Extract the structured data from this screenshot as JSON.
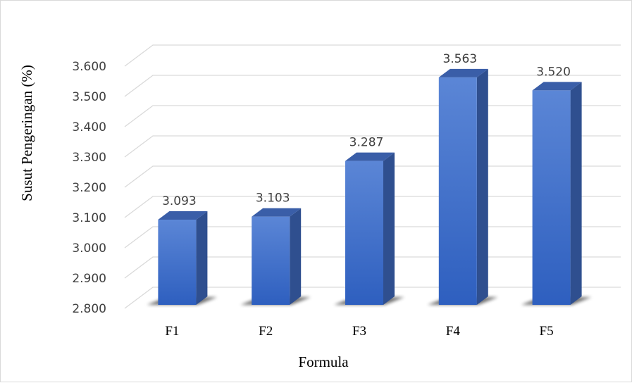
{
  "chart_data": {
    "type": "bar",
    "categories": [
      "F1",
      "F2",
      "F3",
      "F4",
      "F5"
    ],
    "values": [
      3.093,
      3.103,
      3.287,
      3.563,
      3.52
    ],
    "data_labels": [
      "3.093",
      "3.103",
      "3.287",
      "3.563",
      "3.520"
    ],
    "xlabel": "Formula",
    "ylabel": "Susut Pengeringan (%)",
    "ylim": [
      2.8,
      3.6
    ],
    "ytick_values": [
      2.8,
      2.9,
      3.0,
      3.1,
      3.2,
      3.3,
      3.4,
      3.5,
      3.6
    ],
    "ytick_labels": [
      "2.800",
      "2.900",
      "3.000",
      "3.100",
      "3.200",
      "3.300",
      "3.400",
      "3.500",
      "3.600"
    ],
    "grid": true,
    "legend": "none",
    "style": "3d-column",
    "colors": {
      "bar_front": "#4472c4",
      "bar_side": "#2f4f8f",
      "bar_top": "#3a5ea8",
      "gridline": "#d9d9d9"
    }
  }
}
